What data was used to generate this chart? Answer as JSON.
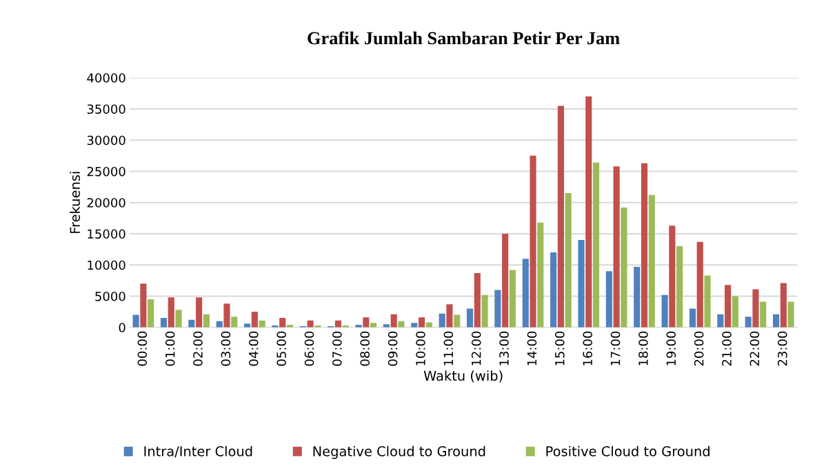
{
  "chart_data": {
    "type": "bar",
    "title": "Grafik Jumlah Sambaran Petir Per Jam",
    "xlabel": "Waktu (wib)",
    "ylabel": "Frekuensi",
    "categories": [
      "00:00",
      "01:00",
      "02:00",
      "03:00",
      "04:00",
      "05:00",
      "06:00",
      "07:00",
      "08:00",
      "09:00",
      "10:00",
      "11:00",
      "12:00",
      "13:00",
      "14:00",
      "15:00",
      "16:00",
      "17:00",
      "18:00",
      "19:00",
      "20:00",
      "21:00",
      "22:00",
      "23:00"
    ],
    "series": [
      {
        "name": "Intra/Inter Cloud",
        "color": "#4f81bd",
        "values": [
          2000,
          1500,
          1200,
          1000,
          600,
          300,
          200,
          200,
          400,
          500,
          700,
          2200,
          3000,
          6000,
          11000,
          12000,
          14000,
          9000,
          9700,
          5200,
          3000,
          2100,
          1700,
          2100
        ]
      },
      {
        "name": "Negative Cloud to Ground",
        "color": "#c0504d",
        "values": [
          7000,
          4800,
          4800,
          3800,
          2500,
          1500,
          1100,
          1100,
          1600,
          2100,
          1600,
          3700,
          8700,
          15000,
          27500,
          35500,
          37000,
          25800,
          26300,
          16300,
          13700,
          6800,
          6100,
          7100
        ]
      },
      {
        "name": "Positive Cloud to Ground",
        "color": "#9bbb59",
        "values": [
          4500,
          2800,
          2100,
          1700,
          1100,
          400,
          300,
          300,
          700,
          1000,
          800,
          2000,
          5200,
          9200,
          16800,
          21500,
          26400,
          19200,
          21200,
          13000,
          8300,
          5000,
          4100,
          4100
        ]
      }
    ],
    "ylim": [
      0,
      40000
    ],
    "yticks": [
      0,
      5000,
      10000,
      15000,
      20000,
      25000,
      30000,
      35000,
      40000
    ],
    "grid": "y",
    "legend": "bottom"
  }
}
